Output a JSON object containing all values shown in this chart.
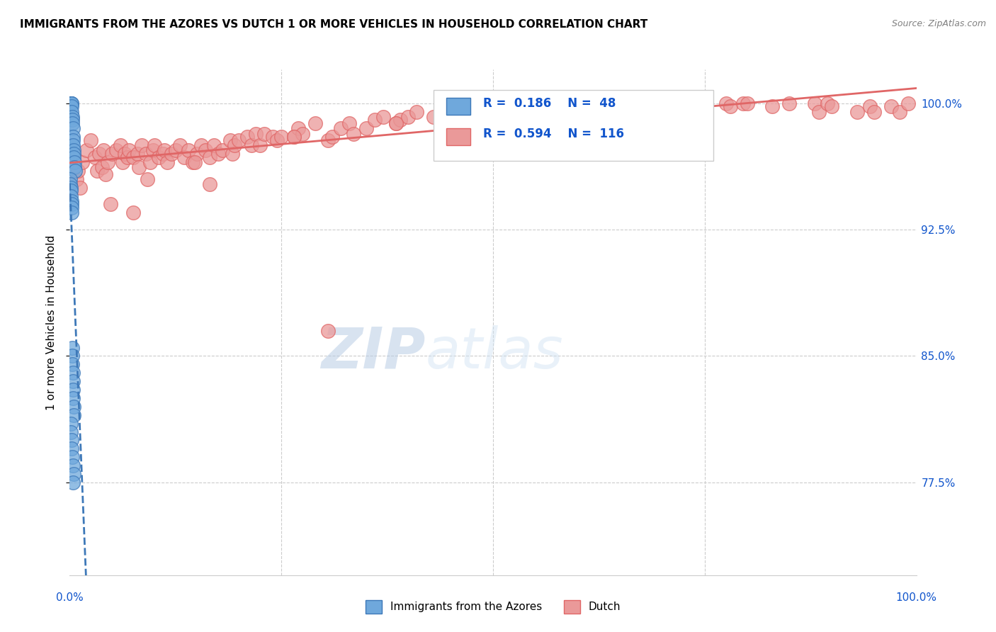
{
  "title": "IMMIGRANTS FROM THE AZORES VS DUTCH 1 OR MORE VEHICLES IN HOUSEHOLD CORRELATION CHART",
  "source": "Source: ZipAtlas.com",
  "ylabel": "1 or more Vehicles in Household",
  "xrange": [
    0.0,
    100.0
  ],
  "yrange": [
    72.0,
    102.0
  ],
  "watermark_zip": "ZIP",
  "watermark_atlas": "atlas",
  "color_azores": "#6fa8dc",
  "color_dutch": "#ea9999",
  "color_azores_edge": "#3d78b8",
  "color_dutch_edge": "#e06666",
  "color_azores_line": "#3d78b8",
  "color_dutch_line": "#e06666",
  "color_text_blue": "#1155cc",
  "azores_x": [
    0.05,
    0.08,
    0.1,
    0.12,
    0.15,
    0.18,
    0.2,
    0.22,
    0.25,
    0.28,
    0.3,
    0.32,
    0.35,
    0.38,
    0.4,
    0.42,
    0.45,
    0.48,
    0.5,
    0.52,
    0.55,
    0.6,
    0.05,
    0.08,
    0.1,
    0.12,
    0.15,
    0.18,
    0.2,
    0.22,
    0.25,
    0.28,
    0.3,
    0.32,
    0.35,
    0.38,
    0.4,
    0.42,
    0.45,
    0.48,
    0.1,
    0.15,
    0.2,
    0.25,
    0.3,
    0.4,
    0.5,
    0.35
  ],
  "azores_y": [
    100.0,
    100.0,
    100.0,
    100.0,
    100.0,
    100.0,
    100.0,
    99.8,
    99.5,
    99.2,
    99.0,
    98.8,
    98.5,
    98.0,
    97.8,
    97.5,
    97.2,
    97.0,
    96.8,
    96.5,
    96.2,
    96.0,
    95.5,
    95.2,
    95.0,
    94.8,
    94.5,
    94.2,
    94.0,
    93.8,
    93.5,
    85.5,
    85.0,
    84.5,
    84.0,
    83.5,
    83.0,
    82.5,
    82.0,
    81.5,
    81.0,
    80.5,
    80.0,
    79.5,
    79.0,
    78.5,
    78.0,
    77.5
  ],
  "dutch_x": [
    0.8,
    1.0,
    1.2,
    1.5,
    2.0,
    2.5,
    3.0,
    3.2,
    3.5,
    3.8,
    4.0,
    4.2,
    4.5,
    5.0,
    5.5,
    6.0,
    6.2,
    6.5,
    6.8,
    7.0,
    7.5,
    8.0,
    8.2,
    8.5,
    9.0,
    9.5,
    9.8,
    10.0,
    10.5,
    11.0,
    11.2,
    11.5,
    12.0,
    12.5,
    13.0,
    13.5,
    14.0,
    14.5,
    15.0,
    15.5,
    16.0,
    16.5,
    17.0,
    17.5,
    18.0,
    19.0,
    19.2,
    19.5,
    20.0,
    21.0,
    21.5,
    22.0,
    22.5,
    23.0,
    24.0,
    24.5,
    25.0,
    26.5,
    27.0,
    27.5,
    29.0,
    30.5,
    31.0,
    32.0,
    33.0,
    33.5,
    35.0,
    36.0,
    37.0,
    38.5,
    39.0,
    40.0,
    41.0,
    43.0,
    44.0,
    44.5,
    45.0,
    48.5,
    50.0,
    52.0,
    55.0,
    55.5,
    58.5,
    60.0,
    63.0,
    65.0,
    66.5,
    68.0,
    69.5,
    70.0,
    73.0,
    75.0,
    77.5,
    78.0,
    79.5,
    80.0,
    83.0,
    85.0,
    88.0,
    88.5,
    89.5,
    90.0,
    93.0,
    94.5,
    95.0,
    97.0,
    98.0,
    99.0,
    4.8,
    7.5,
    9.2,
    14.8,
    16.5,
    26.5,
    38.5,
    48.5,
    30.5
  ],
  "dutch_y": [
    95.5,
    96.0,
    95.0,
    96.5,
    97.2,
    97.8,
    96.8,
    96.0,
    97.0,
    96.2,
    97.2,
    95.8,
    96.5,
    97.0,
    97.2,
    97.5,
    96.5,
    97.0,
    96.8,
    97.2,
    96.8,
    97.0,
    96.2,
    97.5,
    97.0,
    96.5,
    97.2,
    97.5,
    96.8,
    97.0,
    97.2,
    96.5,
    97.0,
    97.2,
    97.5,
    96.8,
    97.2,
    96.5,
    97.0,
    97.5,
    97.2,
    96.8,
    97.5,
    97.0,
    97.2,
    97.8,
    97.0,
    97.5,
    97.8,
    98.0,
    97.5,
    98.2,
    97.5,
    98.2,
    98.0,
    97.8,
    98.0,
    98.0,
    98.5,
    98.2,
    98.8,
    97.8,
    98.0,
    98.5,
    98.8,
    98.2,
    98.5,
    99.0,
    99.2,
    98.8,
    99.0,
    99.2,
    99.5,
    99.2,
    99.5,
    99.0,
    99.5,
    99.5,
    99.8,
    100.0,
    99.5,
    99.8,
    99.8,
    100.0,
    99.8,
    100.0,
    100.0,
    100.0,
    100.0,
    100.0,
    100.0,
    100.0,
    100.0,
    99.8,
    100.0,
    100.0,
    99.8,
    100.0,
    100.0,
    99.5,
    100.0,
    99.8,
    99.5,
    99.8,
    99.5,
    99.8,
    99.5,
    100.0,
    94.0,
    93.5,
    95.5,
    96.5,
    95.2,
    98.0,
    98.8,
    99.2,
    86.5
  ]
}
